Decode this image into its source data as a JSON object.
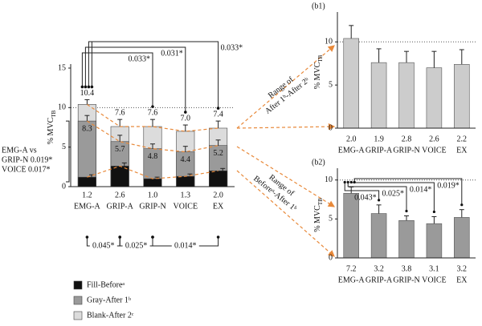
{
  "chart_data": [
    {
      "type": "bar",
      "bar_mode": "overlap",
      "y_label": {
        "text": "% MVC",
        "sub": "TB"
      },
      "categories": [
        "EMG-A",
        "GRIP-A",
        "GRIP-N",
        "VOICE",
        "EX"
      ],
      "series": [
        {
          "name": "Fill-Beforeᵃ",
          "color": "#111111",
          "values": [
            1.2,
            2.6,
            1.0,
            1.3,
            2.0
          ],
          "value_labels": [
            "1.2",
            "2.6",
            "1.0",
            "1.3",
            "2.0"
          ],
          "errors": [
            0.3,
            0.4,
            0.2,
            0.3,
            0.3
          ]
        },
        {
          "name": "Gray-After 1ᵇ",
          "color": "#9a9a9a",
          "values": [
            8.3,
            5.7,
            4.8,
            4.4,
            5.2
          ],
          "value_labels": [
            "8.3",
            "5.7",
            "4.8",
            "4.4",
            "5.2"
          ],
          "errors": [
            0.7,
            0.8,
            0.6,
            0.7,
            0.7
          ]
        },
        {
          "name": "Blank-After 2ᶜ",
          "color": "#dcdcdc",
          "values": [
            10.4,
            7.6,
            7.6,
            7.0,
            7.4
          ],
          "value_labels": [
            "10.4",
            "7.6",
            "7.6",
            "7.0",
            "7.4"
          ],
          "errors": [
            0.6,
            0.9,
            0.9,
            0.8,
            0.9
          ]
        }
      ],
      "ylim": [
        0,
        15
      ],
      "yticks": [
        0,
        5,
        10,
        15
      ],
      "ref_line": 10,
      "annotations": [
        "0.033*",
        "0.031*",
        "0.033*"
      ],
      "side_annotation": [
        "EMG-A vs",
        "GRIP-N 0.019*",
        "VOICE 0.017*"
      ],
      "bottom_annotations": [
        "0.045*",
        "0.025*",
        "0.014*"
      ]
    },
    {
      "type": "bar",
      "title": "(b1)",
      "y_label": {
        "text": "% MVC",
        "sub": "TB"
      },
      "categories": [
        "EMG-A",
        "GRIP-A",
        "GRIP-N",
        "VOICE",
        "EX"
      ],
      "values": [
        10.4,
        7.6,
        7.6,
        7.0,
        7.4
      ],
      "errors": [
        1.5,
        1.6,
        1.3,
        1.9,
        1.7
      ],
      "color": "#cccccc",
      "ranges": [
        "2.0",
        "1.9",
        "2.8",
        "2.6",
        "2.2"
      ],
      "link_label": [
        "Range of",
        "After 1ᵇ-After 2ᵇ"
      ],
      "ylim": [
        0,
        13
      ],
      "yticks": [
        0,
        5,
        10
      ],
      "ref_line": 10
    },
    {
      "type": "bar",
      "title": "(b2)",
      "y_label": {
        "text": "% MVC",
        "sub": "TB"
      },
      "categories": [
        "EMG-A",
        "GRIP-A",
        "GRIP-N",
        "VOICE",
        "EX"
      ],
      "values": [
        8.3,
        5.7,
        4.8,
        4.4,
        5.2
      ],
      "errors": [
        0.8,
        1.1,
        0.6,
        0.9,
        1.0
      ],
      "color": "#9a9a9a",
      "ranges": [
        "7.2",
        "3.2",
        "3.8",
        "3.1",
        "3.2"
      ],
      "link_label": [
        "Range of",
        "Beforeᵃ-After 1ᵇ"
      ],
      "annotations": [
        "0.043*",
        "0.025*",
        "0.014*",
        "0.019*"
      ],
      "ylim": [
        0,
        11
      ],
      "yticks": [
        0,
        5,
        10
      ],
      "ref_line": 10
    }
  ]
}
